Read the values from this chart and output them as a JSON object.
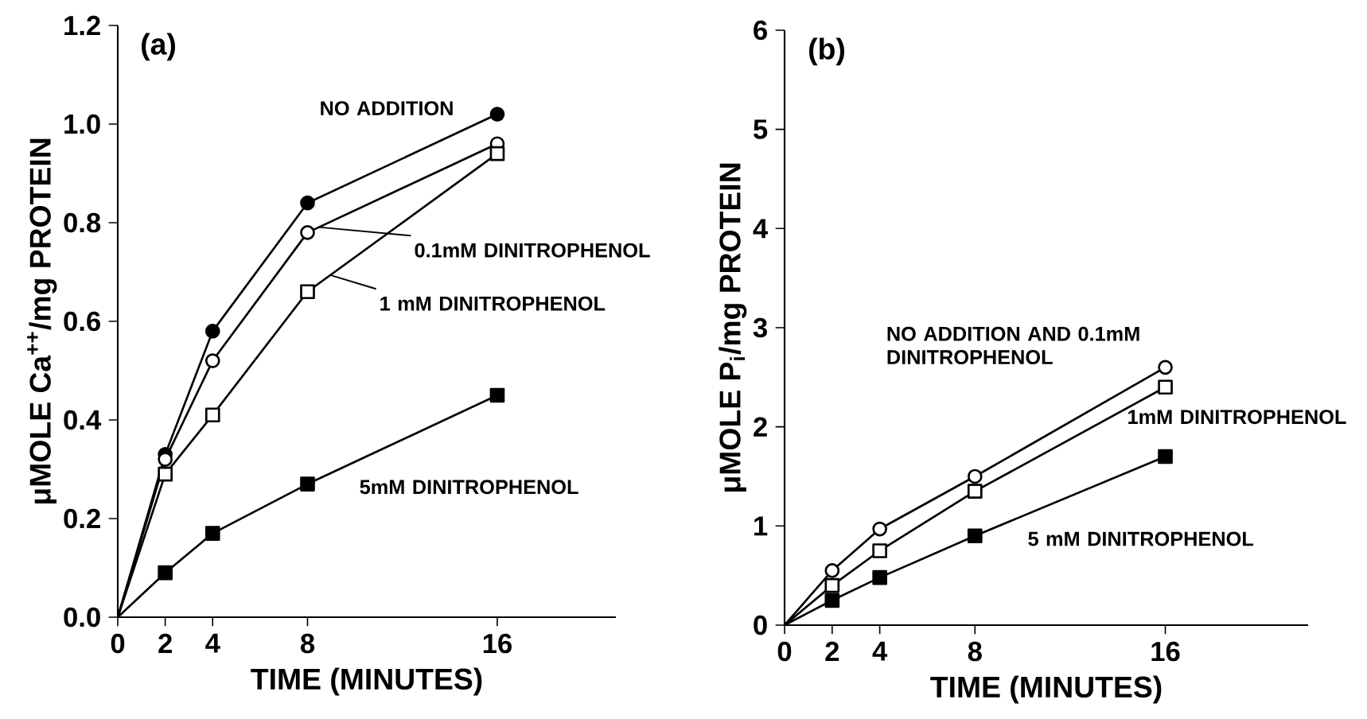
{
  "chart_data": [
    {
      "type": "line",
      "title": "(a)",
      "xlabel": "TIME (MINUTES)",
      "ylabel": "μMOLE Ca$^{++}$/mg PROTEIN",
      "xlim": [
        0,
        21
      ],
      "xticks": [
        0,
        2,
        4,
        8,
        16
      ],
      "ylim": [
        0,
        1.2
      ],
      "yticks": [
        {
          "value": 0,
          "label": "0.0"
        },
        {
          "value": 0.2,
          "label": "0.2"
        },
        {
          "value": 0.4,
          "label": "0.4"
        },
        {
          "value": 0.6,
          "label": "0.6"
        },
        {
          "value": 0.8,
          "label": "0.8"
        },
        {
          "value": 1.0,
          "label": "1.0"
        },
        {
          "value": 1.2,
          "label": "1.2"
        }
      ],
      "x": [
        0,
        2,
        4,
        8,
        16
      ],
      "grid": false,
      "legend": false,
      "line_style": "solid",
      "series": [
        {
          "name": "NO ADDITION",
          "color": "#000000",
          "marker": "circle",
          "values": [
            0,
            0.33,
            0.58,
            0.84,
            1.02
          ]
        },
        {
          "name": "0.1mM DINITROPHENOL",
          "color": "#000000",
          "marker": "circle",
          "values": [
            0,
            0.32,
            0.52,
            0.78,
            0.96
          ]
        },
        {
          "name": "1 mM DINITROPHENOL",
          "color": "#000000",
          "marker": "square",
          "values": [
            0,
            0.29,
            0.41,
            0.66,
            0.94
          ]
        },
        {
          "name": "5mM DINITROPHENOL",
          "color": "#000000",
          "marker": "square",
          "values": [
            0,
            0.09,
            0.17,
            0.27,
            0.45
          ]
        }
      ]
    },
    {
      "type": "line",
      "title": "(b)",
      "xlabel": "TIME (MINUTES)",
      "ylabel": "μMOLE P$_{i}$/mg PROTEIN",
      "xlim": [
        0,
        22
      ],
      "xticks": [
        0,
        2,
        4,
        8,
        16
      ],
      "ylim": [
        0,
        6
      ],
      "yticks": [
        0,
        1,
        2,
        3,
        4,
        5,
        6
      ],
      "x": [
        0,
        2,
        4,
        8,
        16
      ],
      "grid": false,
      "legend": false,
      "line_style": "solid",
      "series": [
        {
          "name": "NO ADDITION AND 0.1mM DINITROPHENOL",
          "color": "#000000",
          "marker": "circle",
          "values": [
            0,
            0.55,
            0.97,
            1.5,
            2.6
          ]
        },
        {
          "name": "1mM DINITROPHENOL",
          "color": "#000000",
          "marker": "square",
          "values": [
            0,
            0.4,
            0.75,
            1.35,
            2.4
          ]
        },
        {
          "name": "5 mM DINITROPHENOL",
          "color": "#000000",
          "marker": "square",
          "values": [
            0,
            0.25,
            0.48,
            0.9,
            1.7
          ]
        }
      ]
    }
  ]
}
